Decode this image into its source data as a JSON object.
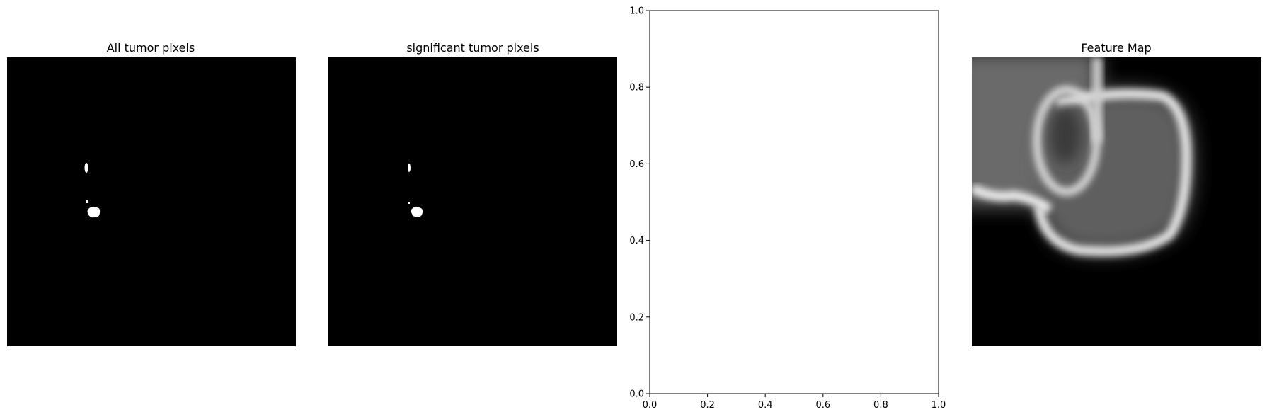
{
  "panels": [
    {
      "title": "All tumor pixels"
    },
    {
      "title": "significant tumor pixels"
    },
    {
      "title": ""
    },
    {
      "title": "Feature Map"
    }
  ],
  "chart_data": [
    {
      "type": "image",
      "title": "All tumor pixels",
      "colormap": "gray",
      "axis": "off"
    },
    {
      "type": "image",
      "title": "significant tumor pixels",
      "colormap": "gray",
      "axis": "off"
    },
    {
      "type": "scatter",
      "title": "",
      "series": [],
      "xlim": [
        0.0,
        1.0
      ],
      "ylim": [
        0.0,
        1.0
      ],
      "xticks": [
        "0.0",
        "0.2",
        "0.4",
        "0.6",
        "0.8",
        "1.0"
      ],
      "yticks": [
        "0.0",
        "0.2",
        "0.4",
        "0.6",
        "0.8",
        "1.0"
      ],
      "grid": false
    },
    {
      "type": "image",
      "title": "Feature Map",
      "colormap": "gray",
      "axis": "off"
    }
  ],
  "colors": {
    "background": "#ffffff",
    "image_bg": "#000000",
    "mask": "#ffffff",
    "axis": "#000000"
  }
}
